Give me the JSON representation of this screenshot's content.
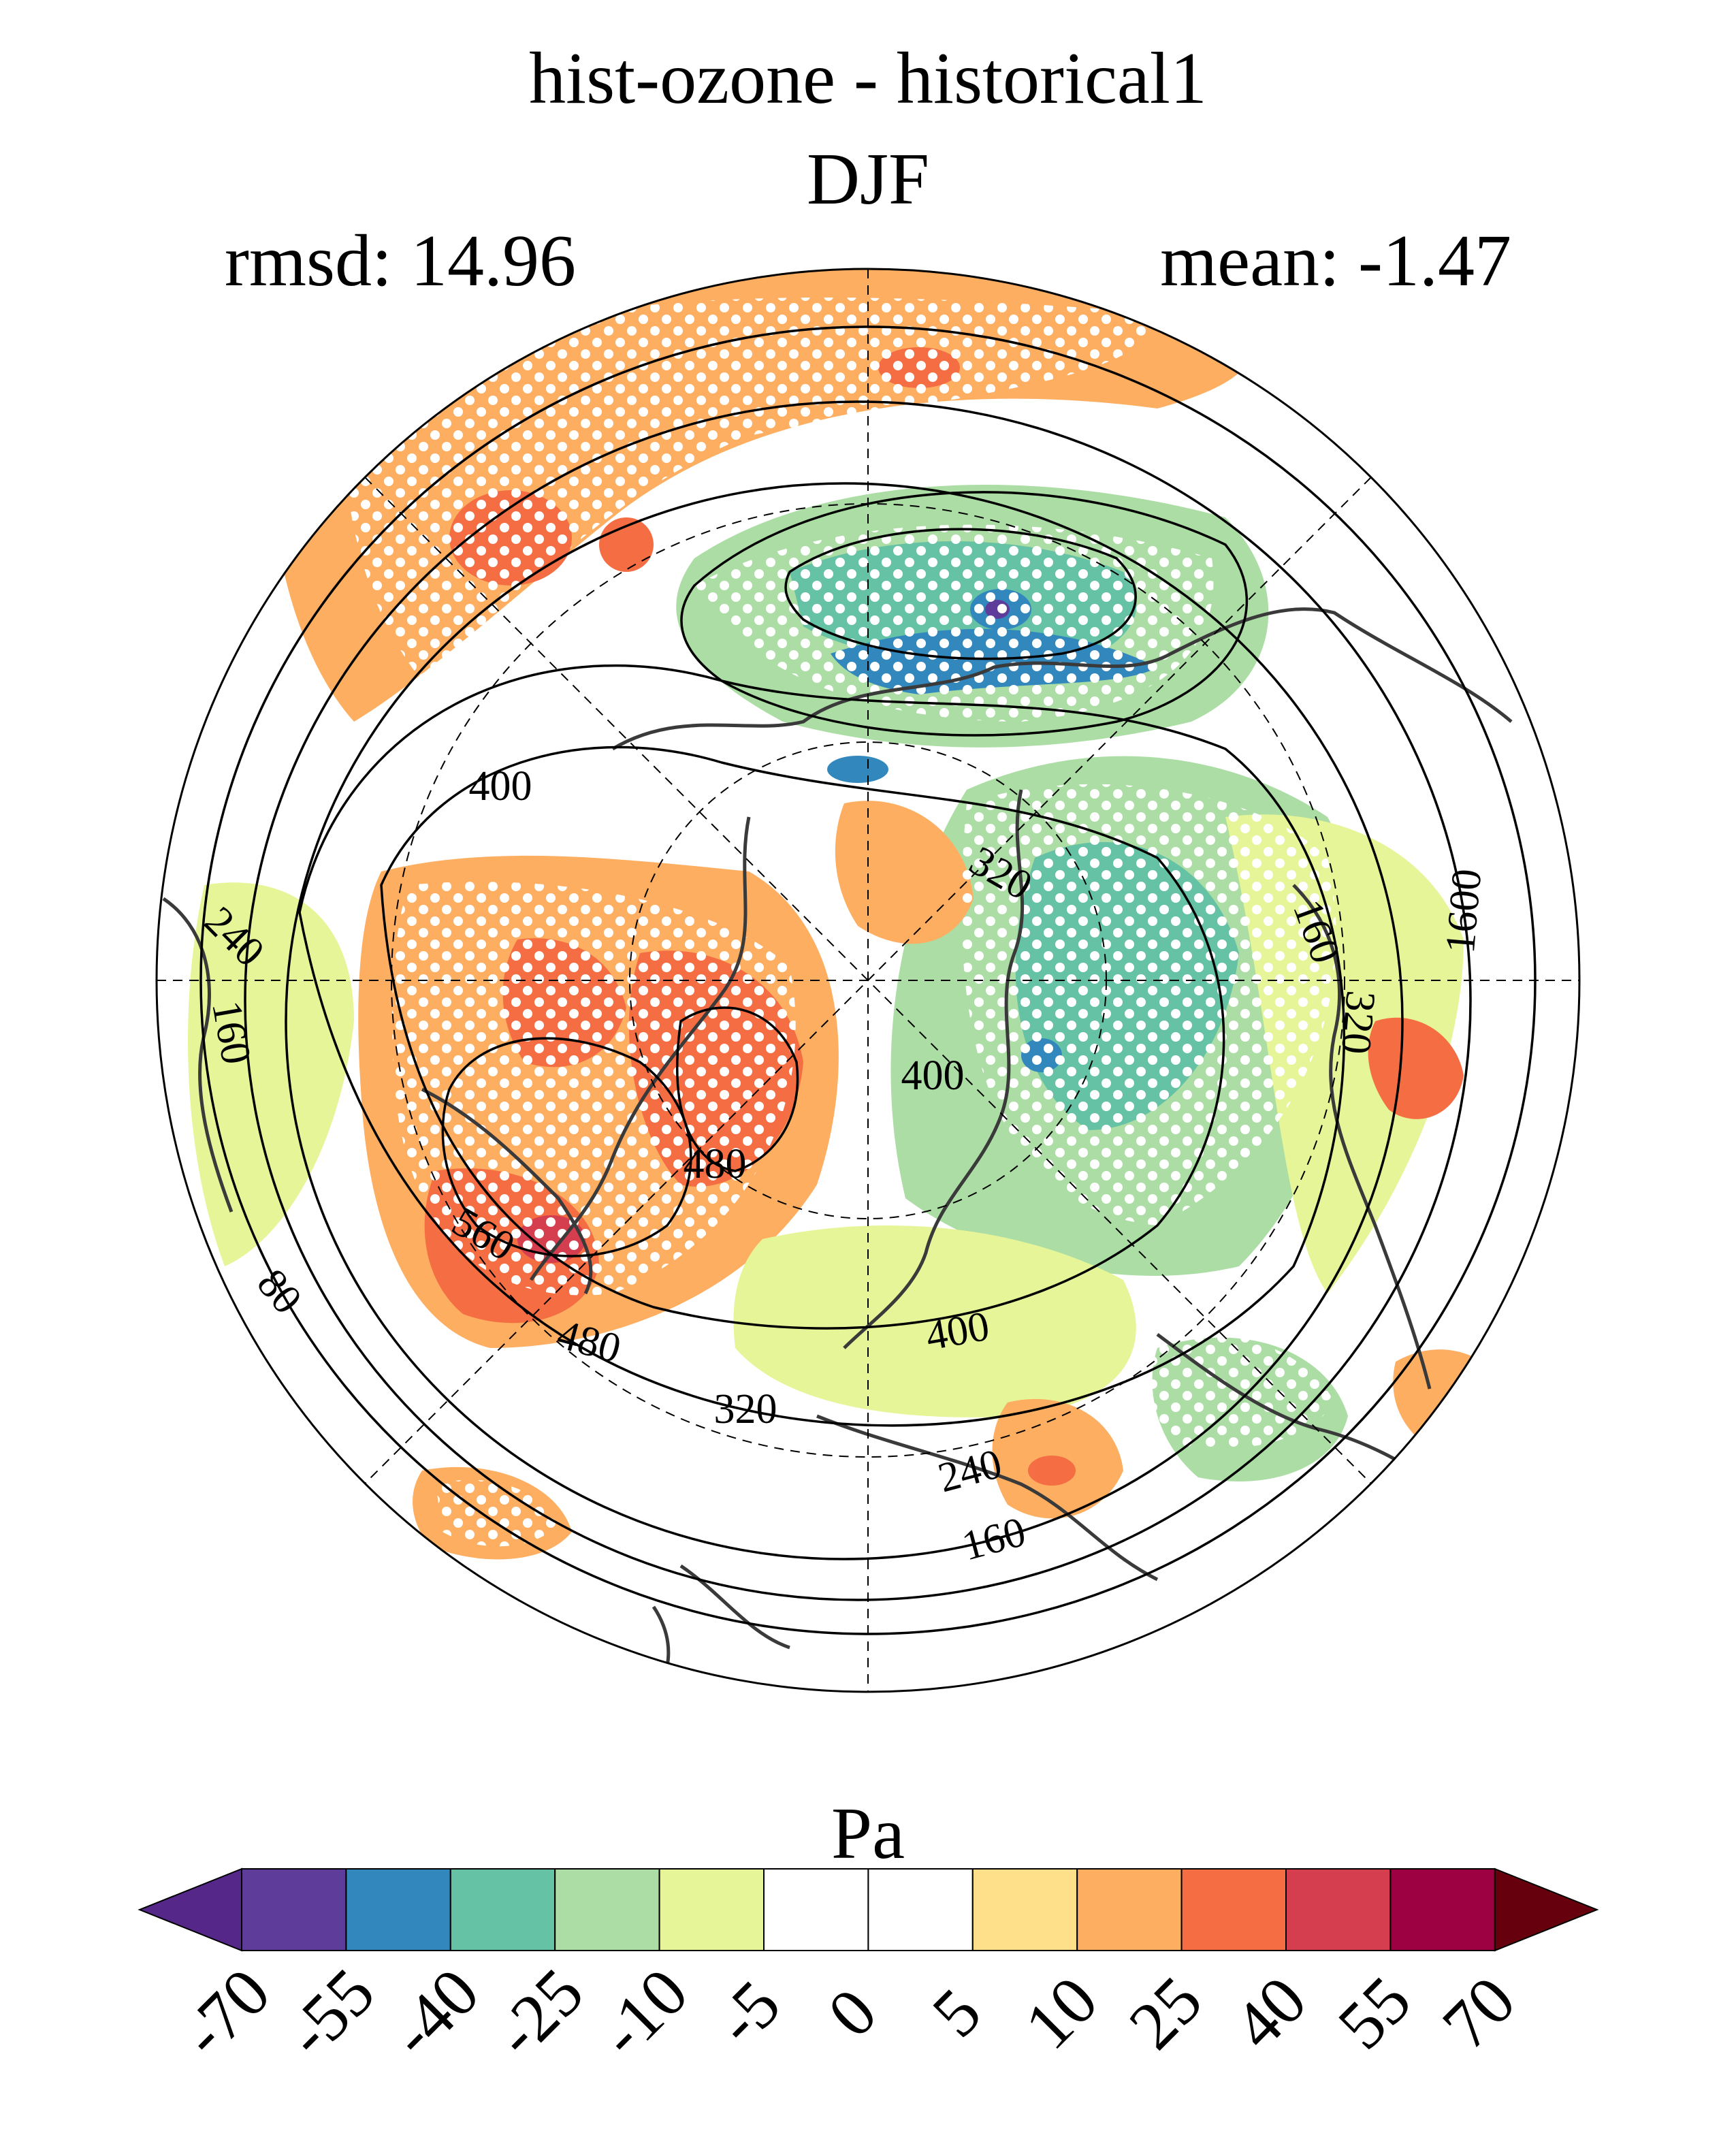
{
  "title": {
    "line1": "hist-ozone - historical1",
    "line2": "DJF",
    "rmsd": "rmsd: 14.96",
    "mean": "mean: -1.47"
  },
  "colorbar": {
    "units": "Pa",
    "levels": [
      "-70",
      "-55",
      "-40",
      "-25",
      "-10",
      "-5",
      "0",
      "5",
      "10",
      "25",
      "40",
      "55",
      "70"
    ],
    "colors": [
      "#5e3c99",
      "#3288bd",
      "#66c2a5",
      "#abdda4",
      "#e6f598",
      "#ffffff",
      "#ffffff",
      "#fee08b",
      "#fdae61",
      "#f46d43",
      "#d53e4f",
      "#9e0142"
    ],
    "under_color": "#542788",
    "over_color": "#67000d"
  },
  "contour_labels": [
    "400",
    "320",
    "240",
    "160",
    "400",
    "480",
    "560",
    "480",
    "400",
    "320",
    "240",
    "160",
    "80",
    "160",
    "1600",
    "320"
  ],
  "map": {
    "projection": "north polar stereographic",
    "stippling": "white dots mark significant differences"
  }
}
